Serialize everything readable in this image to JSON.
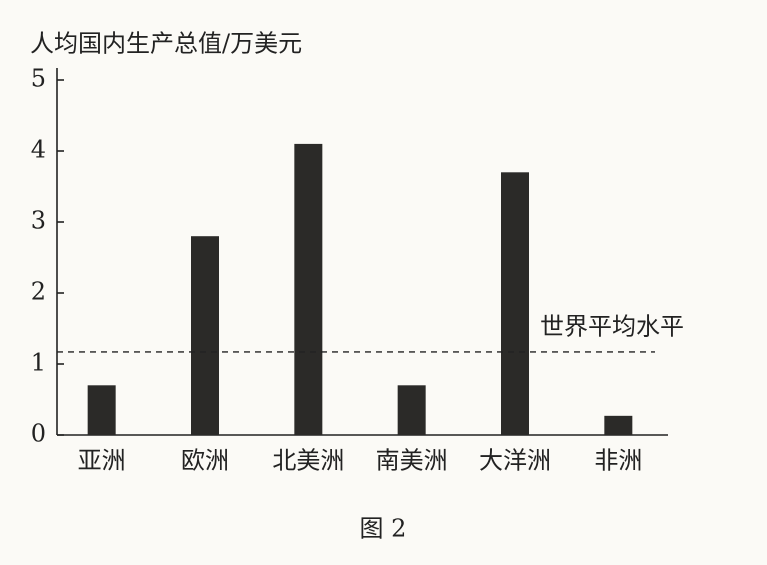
{
  "chart_data": {
    "type": "bar",
    "y_axis_label": "人均国内生产总值/万美元",
    "caption": "图 2",
    "categories": [
      "亚洲",
      "欧洲",
      "北美洲",
      "南美洲",
      "大洋洲",
      "非洲"
    ],
    "values": [
      0.7,
      2.8,
      4.1,
      0.7,
      3.7,
      0.27
    ],
    "color": "#2b2a28",
    "ylim": [
      0,
      5
    ],
    "yticks": [
      0,
      1,
      2,
      3,
      4,
      5
    ],
    "reference_line": {
      "label": "世界平均水平",
      "value": 1.17
    }
  }
}
